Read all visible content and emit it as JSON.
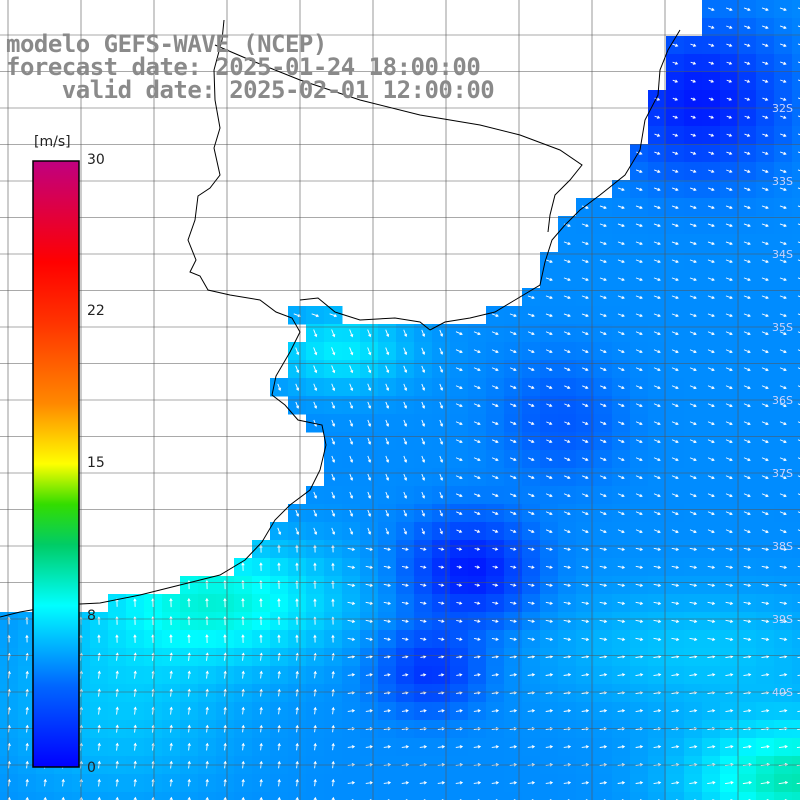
{
  "titles": {
    "model": "modelo GEFS-WAVE (NCEP)",
    "forecast": "forecast date: 2025-01-24 18:00:00",
    "valid": "    valid date: 2025-02-01 12:00:00"
  },
  "colorbar": {
    "unit": "[m/s]",
    "ticks": [
      "30",
      "22",
      "15",
      "8",
      "0"
    ],
    "tick_values": [
      30,
      22,
      15,
      8,
      0
    ],
    "range": [
      0,
      30
    ],
    "stops": [
      {
        "v": 0,
        "c": "#0000ff"
      },
      {
        "v": 4,
        "c": "#0066ff"
      },
      {
        "v": 8,
        "c": "#00ffff"
      },
      {
        "v": 11,
        "c": "#00cc66"
      },
      {
        "v": 13,
        "c": "#33dd00"
      },
      {
        "v": 15,
        "c": "#ffff00"
      },
      {
        "v": 18,
        "c": "#ff8800"
      },
      {
        "v": 22,
        "c": "#ff3300"
      },
      {
        "v": 25,
        "c": "#ff0000"
      },
      {
        "v": 30,
        "c": "#c00080"
      }
    ]
  },
  "lat_labels": [
    "32S",
    "33S",
    "34S",
    "35S",
    "36S",
    "37S",
    "38S",
    "39S",
    "40S"
  ],
  "colors": {
    "land": "#ffffff",
    "grid": "#444444",
    "coast": "#000000",
    "arrow": "#ffffff"
  }
}
